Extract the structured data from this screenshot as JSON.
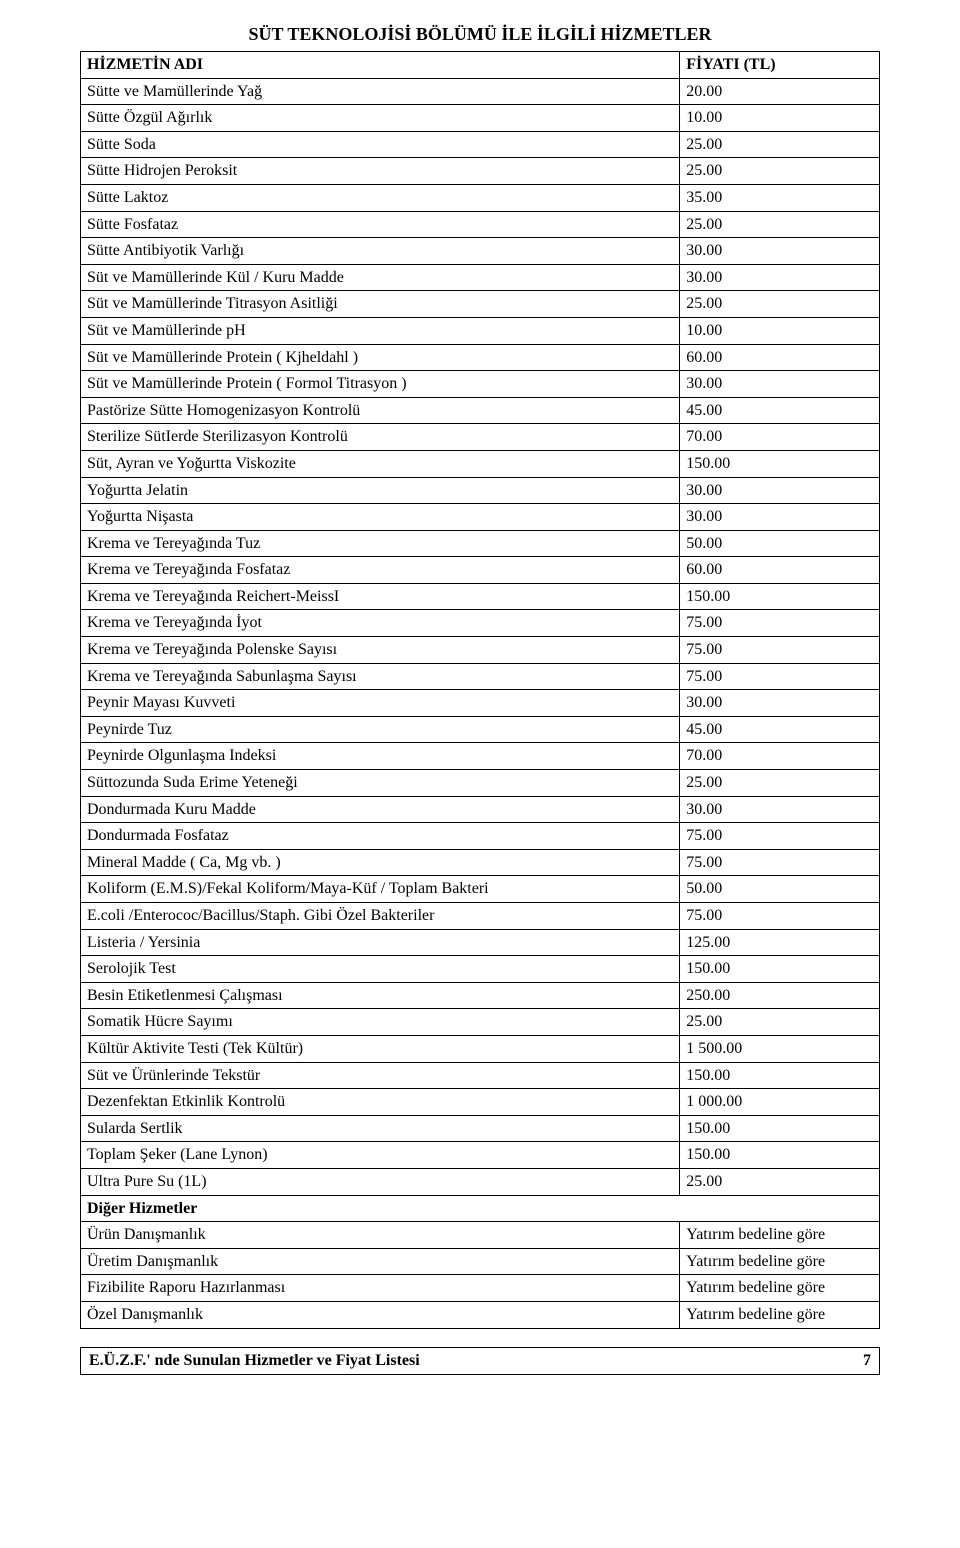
{
  "title": "SÜT TEKNOLOJİSİ BÖLÜMÜ İLE İLGİLİ HİZMETLER",
  "header": {
    "name": "HİZMETİN ADI",
    "price": "FİYATI (TL)"
  },
  "rows": [
    {
      "name": "Sütte ve Mamüllerinde Yağ",
      "price": "20.00"
    },
    {
      "name": "Sütte Özgül Ağırlık",
      "price": "10.00"
    },
    {
      "name": "Sütte Soda",
      "price": "25.00"
    },
    {
      "name": "Sütte Hidrojen Peroksit",
      "price": "25.00"
    },
    {
      "name": "Sütte Laktoz",
      "price": "35.00"
    },
    {
      "name": "Sütte Fosfataz",
      "price": "25.00"
    },
    {
      "name": "Sütte Antibiyotik Varlığı",
      "price": "30.00"
    },
    {
      "name": "Süt ve Mamüllerinde Kül / Kuru Madde",
      "price": "30.00"
    },
    {
      "name": "Süt ve Mamüllerinde Titrasyon Asitliği",
      "price": "25.00"
    },
    {
      "name": "Süt ve Mamüllerinde pH",
      "price": "10.00"
    },
    {
      "name": "Süt ve Mamüllerinde Protein ( Kjheldahl )",
      "price": "60.00"
    },
    {
      "name": "Süt ve Mamüllerinde Protein ( Formol Titrasyon )",
      "price": "30.00"
    },
    {
      "name": "Pastörize Sütte Homogenizasyon Kontrolü",
      "price": "45.00"
    },
    {
      "name": "Sterilize SütIerde Sterilizasyon Kontrolü",
      "price": "70.00"
    },
    {
      "name": "Süt, Ayran ve Yoğurtta Viskozite",
      "price": "150.00"
    },
    {
      "name": "Yoğurtta Jelatin",
      "price": "30.00"
    },
    {
      "name": "Yoğurtta Nişasta",
      "price": "30.00"
    },
    {
      "name": "Krema ve Tereyağında Tuz",
      "price": "50.00"
    },
    {
      "name": "Krema ve Tereyağında Fosfataz",
      "price": "60.00"
    },
    {
      "name": "Krema ve Tereyağında Reichert-MeissI",
      "price": "150.00"
    },
    {
      "name": "Krema ve Tereyağında İyot",
      "price": "75.00"
    },
    {
      "name": "Krema ve Tereyağında Polenske Sayısı",
      "price": "75.00"
    },
    {
      "name": "Krema ve Tereyağında Sabunlaşma Sayısı",
      "price": "75.00"
    },
    {
      "name": "Peynir Mayası Kuvveti",
      "price": "30.00"
    },
    {
      "name": "Peynirde Tuz",
      "price": "45.00"
    },
    {
      "name": "Peynirde Olgunlaşma Indeksi",
      "price": "70.00"
    },
    {
      "name": "Süttozunda Suda Erime Yeteneği",
      "price": "25.00"
    },
    {
      "name": "Dondurmada Kuru Madde",
      "price": "30.00"
    },
    {
      "name": "Dondurmada Fosfataz",
      "price": "75.00"
    },
    {
      "name": "Mineral Madde ( Ca, Mg vb. )",
      "price": "75.00"
    },
    {
      "name": "Koliform (E.M.S)/Fekal Koliform/Maya-Küf / Toplam Bakteri",
      "price": "50.00"
    },
    {
      "name": "E.coli /Enterococ/Bacillus/Staph. Gibi Özel Bakteriler",
      "price": "75.00"
    },
    {
      "name": "Listeria / Yersinia",
      "price": "125.00"
    },
    {
      "name": "Serolojik Test",
      "price": "150.00"
    },
    {
      "name": "Besin Etiketlenmesi Çalışması",
      "price": "250.00"
    },
    {
      "name": "Somatik Hücre Sayımı",
      "price": "25.00"
    },
    {
      "name": "Kültür Aktivite Testi (Tek Kültür)",
      "price": "1 500.00"
    },
    {
      "name": "Süt ve Ürünlerinde Tekstür",
      "price": "150.00"
    },
    {
      "name": "Dezenfektan Etkinlik Kontrolü",
      "price": "1 000.00"
    },
    {
      "name": "Sularda Sertlik",
      "price": "150.00"
    },
    {
      "name": "Toplam Şeker (Lane Lynon)",
      "price": "150.00"
    },
    {
      "name": "Ultra Pure Su (1L)",
      "price": "25.00"
    },
    {
      "section": true,
      "name": "Diğer Hizmetler",
      "price": ""
    },
    {
      "name": "Ürün Danışmanlık",
      "price": "Yatırım bedeline göre"
    },
    {
      "name": "Üretim Danışmanlık",
      "price": "Yatırım bedeline göre"
    },
    {
      "name": "Fizibilite Raporu Hazırlanması",
      "price": "Yatırım bedeline göre"
    },
    {
      "name": "Özel Danışmanlık",
      "price": "Yatırım bedeline göre"
    }
  ],
  "footer": {
    "text": "E.Ü.Z.F.' nde Sunulan Hizmetler ve Fiyat Listesi",
    "page": "7"
  }
}
